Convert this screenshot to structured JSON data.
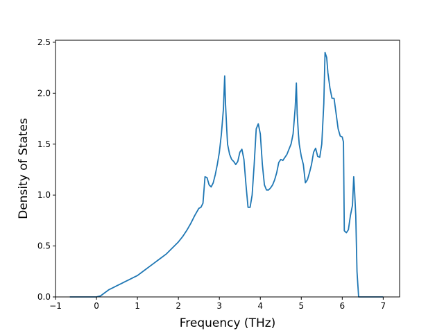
{
  "chart_data": {
    "type": "line",
    "title": "",
    "xlabel": "Frequency (THz)",
    "ylabel": "Density of States",
    "xlim": [
      -1,
      7.4
    ],
    "ylim": [
      0,
      2.52
    ],
    "xticks": [
      -1,
      0,
      1,
      2,
      3,
      4,
      5,
      6,
      7
    ],
    "xtick_labels": [
      "−1",
      "0",
      "1",
      "2",
      "3",
      "4",
      "5",
      "6",
      "7"
    ],
    "yticks": [
      0.0,
      0.5,
      1.0,
      1.5,
      2.0,
      2.5
    ],
    "ytick_labels": [
      "0.0",
      "0.5",
      "1.0",
      "1.5",
      "2.0",
      "2.5"
    ],
    "grid": false,
    "line_color": "#1f77b4",
    "series": [
      {
        "x": [
          -0.65,
          0.0,
          0.1,
          0.2,
          0.3,
          0.4,
          0.5,
          0.6,
          0.7,
          0.8,
          0.9,
          1.0,
          1.1,
          1.2,
          1.3,
          1.4,
          1.5,
          1.6,
          1.7,
          1.8,
          1.9,
          2.0,
          2.1,
          2.2,
          2.3,
          2.4,
          2.5,
          2.55,
          2.6,
          2.65,
          2.7,
          2.75,
          2.8,
          2.85,
          2.9,
          2.95,
          3.0,
          3.05,
          3.1,
          3.13,
          3.15,
          3.18,
          3.2,
          3.25,
          3.3,
          3.35,
          3.4,
          3.45,
          3.5,
          3.55,
          3.6,
          3.65,
          3.7,
          3.75,
          3.8,
          3.85,
          3.9,
          3.95,
          4.0,
          4.05,
          4.1,
          4.15,
          4.2,
          4.25,
          4.3,
          4.35,
          4.4,
          4.45,
          4.5,
          4.55,
          4.6,
          4.65,
          4.7,
          4.75,
          4.8,
          4.85,
          4.88,
          4.9,
          4.93,
          4.95,
          5.0,
          5.05,
          5.1,
          5.15,
          5.2,
          5.25,
          5.3,
          5.35,
          5.4,
          5.45,
          5.5,
          5.55,
          5.58,
          5.62,
          5.65,
          5.7,
          5.75,
          5.8,
          5.85,
          5.9,
          5.95,
          6.0,
          6.03,
          6.05,
          6.1,
          6.15,
          6.2,
          6.25,
          6.28,
          6.3,
          6.33,
          6.36,
          6.4,
          6.5,
          7.0
        ],
        "y": [
          0.0,
          0.0,
          0.01,
          0.04,
          0.07,
          0.09,
          0.11,
          0.13,
          0.15,
          0.17,
          0.19,
          0.21,
          0.24,
          0.27,
          0.3,
          0.33,
          0.36,
          0.39,
          0.42,
          0.46,
          0.5,
          0.54,
          0.59,
          0.65,
          0.72,
          0.8,
          0.87,
          0.88,
          0.92,
          1.18,
          1.17,
          1.1,
          1.08,
          1.12,
          1.2,
          1.3,
          1.42,
          1.6,
          1.85,
          2.17,
          1.9,
          1.65,
          1.5,
          1.4,
          1.35,
          1.33,
          1.3,
          1.33,
          1.42,
          1.45,
          1.35,
          1.1,
          0.88,
          0.88,
          1.0,
          1.3,
          1.65,
          1.7,
          1.6,
          1.3,
          1.1,
          1.05,
          1.05,
          1.07,
          1.1,
          1.15,
          1.22,
          1.32,
          1.35,
          1.34,
          1.37,
          1.4,
          1.45,
          1.5,
          1.6,
          1.85,
          2.1,
          1.8,
          1.6,
          1.5,
          1.38,
          1.3,
          1.12,
          1.15,
          1.22,
          1.3,
          1.42,
          1.46,
          1.38,
          1.37,
          1.5,
          1.9,
          2.4,
          2.35,
          2.2,
          2.05,
          1.95,
          1.95,
          1.8,
          1.65,
          1.58,
          1.57,
          1.52,
          0.65,
          0.63,
          0.66,
          0.8,
          0.9,
          1.18,
          1.05,
          0.8,
          0.25,
          0.0,
          0.0,
          0.0
        ]
      }
    ]
  }
}
